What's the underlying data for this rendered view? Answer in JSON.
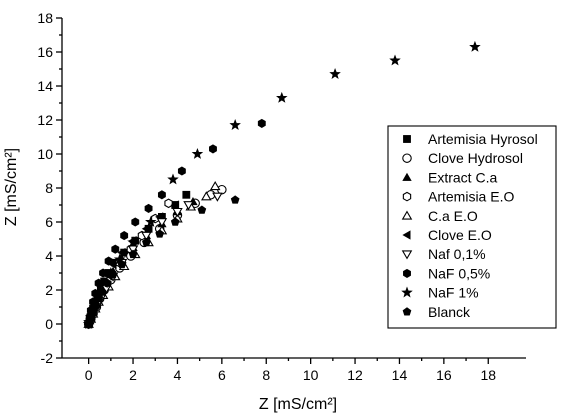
{
  "chart_data": {
    "type": "scatter",
    "xlabel": "Z [mS/cm²]",
    "ylabel": "Z [mS/cm²]",
    "xlim": [
      -1.2,
      19.7
    ],
    "ylim": [
      -2,
      18
    ],
    "xticks": [
      0,
      2,
      4,
      6,
      8,
      10,
      12,
      14,
      16,
      18
    ],
    "yticks": [
      -2,
      0,
      2,
      4,
      6,
      8,
      10,
      12,
      14,
      16,
      18
    ],
    "legend_position": "right",
    "series": [
      {
        "name": "Artemisia Hyrosol",
        "marker": "square",
        "color": "#000000",
        "x": [
          0.0,
          0.05,
          0.1,
          0.15,
          0.2,
          0.3,
          0.4,
          0.55,
          0.7,
          0.9,
          1.2,
          1.6,
          2.1,
          2.7,
          3.3,
          3.9,
          4.4
        ],
        "y": [
          0.0,
          0.2,
          0.4,
          0.6,
          0.9,
          1.2,
          1.6,
          2.0,
          2.5,
          3.0,
          3.6,
          4.2,
          4.9,
          5.6,
          6.3,
          7.0,
          7.6
        ]
      },
      {
        "name": "Clove Hydrosol",
        "marker": "circle-open",
        "color": "#000000",
        "x": [
          0.0,
          0.1,
          0.2,
          0.35,
          0.5,
          0.7,
          1.0,
          1.4,
          1.9,
          2.5,
          3.2,
          4.0,
          4.8,
          5.5,
          6.0
        ],
        "y": [
          0.0,
          0.3,
          0.6,
          1.0,
          1.5,
          2.0,
          2.6,
          3.3,
          4.0,
          4.8,
          5.6,
          6.4,
          7.1,
          7.6,
          7.9
        ]
      },
      {
        "name": "Extract C.a",
        "marker": "triangle-up",
        "color": "#000000",
        "x": [
          0.0,
          0.05,
          0.1,
          0.2,
          0.3,
          0.45,
          0.6,
          0.8,
          1.1,
          1.5,
          2.0,
          2.6,
          3.3,
          4.0,
          4.7
        ],
        "y": [
          0.0,
          0.2,
          0.5,
          0.8,
          1.1,
          1.5,
          2.0,
          2.5,
          3.1,
          3.8,
          4.5,
          5.2,
          5.9,
          6.6,
          7.2
        ]
      },
      {
        "name": "Artemisia E.O",
        "marker": "hexagon-open",
        "color": "#000000",
        "x": [
          0.0,
          0.1,
          0.2,
          0.35,
          0.5,
          0.7,
          1.0,
          1.4,
          1.9,
          2.4,
          3.0,
          3.6
        ],
        "y": [
          0.0,
          0.3,
          0.7,
          1.1,
          1.6,
          2.2,
          2.9,
          3.6,
          4.4,
          5.2,
          6.2,
          7.1
        ]
      },
      {
        "name": "C.a E.O",
        "marker": "triangle-up-open",
        "color": "#000000",
        "x": [
          0.0,
          0.1,
          0.2,
          0.3,
          0.45,
          0.65,
          0.9,
          1.2,
          1.6,
          2.1,
          2.7,
          3.3,
          4.0,
          4.6,
          5.3,
          5.7
        ],
        "y": [
          0.0,
          0.3,
          0.6,
          0.9,
          1.3,
          1.7,
          2.2,
          2.8,
          3.4,
          4.1,
          4.8,
          5.5,
          6.2,
          6.9,
          7.5,
          8.1
        ]
      },
      {
        "name": "Clove E.O",
        "marker": "triangle-left",
        "color": "#000000",
        "x": [
          0.0,
          0.05,
          0.1,
          0.2,
          0.3,
          0.45,
          0.6,
          0.85,
          1.1,
          1.5,
          2.0,
          2.6,
          3.2,
          3.9
        ],
        "y": [
          0.0,
          0.3,
          0.6,
          0.9,
          1.3,
          1.8,
          2.3,
          2.9,
          3.5,
          4.2,
          4.9,
          5.6,
          6.3,
          7.0
        ]
      },
      {
        "name": "Naf 0,1%",
        "marker": "triangle-down-open",
        "color": "#000000",
        "x": [
          0.0,
          0.1,
          0.2,
          0.35,
          0.55,
          0.8,
          1.1,
          1.5,
          2.0,
          2.6,
          3.3,
          4.0,
          4.5,
          5.8
        ],
        "y": [
          0.0,
          0.3,
          0.6,
          1.0,
          1.5,
          2.1,
          2.8,
          3.6,
          4.4,
          5.2,
          6.0,
          6.6,
          7.0,
          7.5
        ]
      },
      {
        "name": "NaF 0,5%",
        "marker": "hexagon",
        "color": "#000000",
        "x": [
          0.0,
          0.05,
          0.1,
          0.2,
          0.3,
          0.45,
          0.65,
          0.9,
          1.2,
          1.6,
          2.1,
          2.7,
          3.3,
          4.2,
          5.6,
          7.8
        ],
        "y": [
          0.0,
          0.4,
          0.8,
          1.3,
          1.8,
          2.4,
          3.0,
          3.7,
          4.4,
          5.2,
          6.0,
          6.8,
          7.6,
          9.0,
          10.3,
          11.8
        ]
      },
      {
        "name": "NaF 1%",
        "marker": "star",
        "color": "#000000",
        "x": [
          0.0,
          0.1,
          0.2,
          0.35,
          0.5,
          0.7,
          1.0,
          1.4,
          2.0,
          2.8,
          3.8,
          4.9,
          6.6,
          8.7,
          11.1,
          13.8,
          17.4
        ],
        "y": [
          0.0,
          0.4,
          0.8,
          1.3,
          1.8,
          2.4,
          3.0,
          3.8,
          4.8,
          6.0,
          8.5,
          10.0,
          11.7,
          13.3,
          14.7,
          15.5,
          16.3
        ]
      },
      {
        "name": "Blanck",
        "marker": "pentagon",
        "color": "#000000",
        "x": [
          0.0,
          0.05,
          0.1,
          0.2,
          0.3,
          0.45,
          0.6,
          0.85,
          1.1,
          1.5,
          2.0,
          2.6,
          3.2,
          3.9,
          5.1,
          6.6
        ],
        "y": [
          0.0,
          0.2,
          0.5,
          0.8,
          1.1,
          1.5,
          1.9,
          2.4,
          2.9,
          3.5,
          4.1,
          4.8,
          5.3,
          6.0,
          6.7,
          7.3
        ]
      }
    ]
  }
}
